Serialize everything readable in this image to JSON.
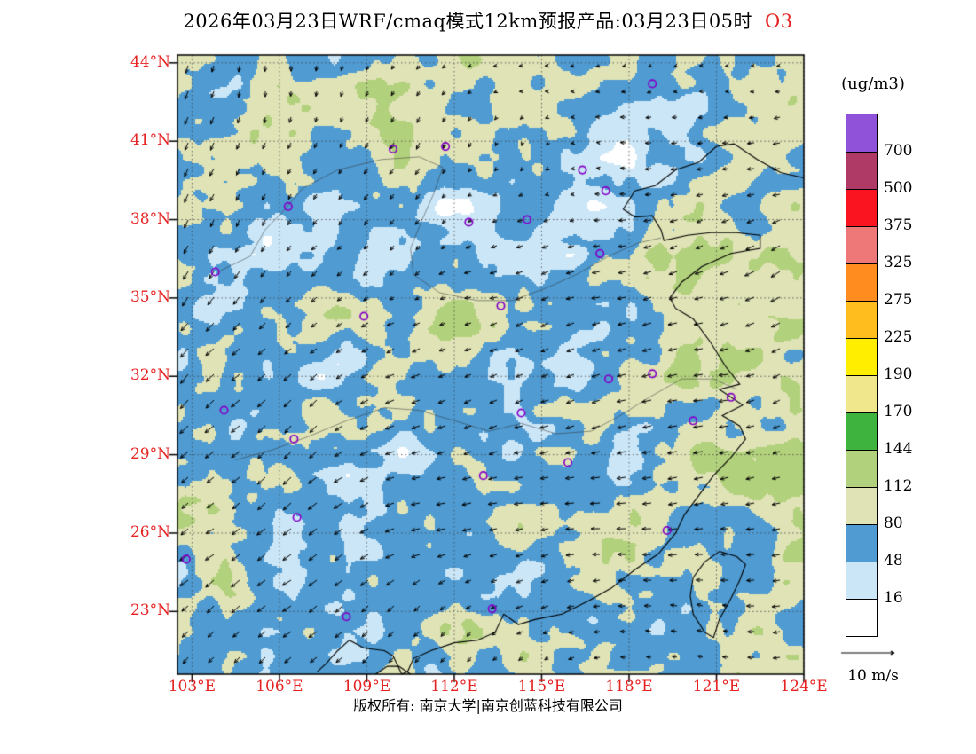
{
  "title": {
    "main": "2026年03月23日WRF/cmaq模式12km预报产品:03月23日05时",
    "species": "O3"
  },
  "colors": {
    "axis_label_red": "#e62222",
    "title_species_red": "#e62222",
    "station_marker_purple": "#8400c8",
    "coastline_black": "#000000"
  },
  "colorbar": {
    "unit_label": "(ug/m3)"
  },
  "wind_legend": {
    "label": "10 m/s"
  },
  "footer": {
    "copyright": "版权所有: 南京大学|南京创蓝科技有限公司"
  },
  "stations": {
    "points": [
      [
        102.8,
        25.0
      ],
      [
        104.1,
        30.7
      ],
      [
        106.5,
        29.6
      ],
      [
        106.6,
        26.6
      ],
      [
        108.3,
        22.8
      ],
      [
        108.9,
        34.3
      ],
      [
        106.3,
        38.5
      ],
      [
        103.8,
        36.0
      ],
      [
        111.7,
        40.8
      ],
      [
        109.9,
        40.7
      ],
      [
        112.5,
        37.9
      ],
      [
        114.5,
        38.0
      ],
      [
        116.4,
        39.9
      ],
      [
        117.2,
        39.1
      ],
      [
        113.6,
        34.7
      ],
      [
        117.0,
        36.7
      ],
      [
        114.3,
        30.6
      ],
      [
        113.0,
        28.2
      ],
      [
        115.9,
        28.7
      ],
      [
        117.3,
        31.9
      ],
      [
        118.8,
        32.1
      ],
      [
        121.5,
        31.2
      ],
      [
        120.2,
        30.3
      ],
      [
        119.3,
        26.1
      ],
      [
        113.3,
        23.1
      ],
      [
        118.8,
        43.2
      ]
    ]
  },
  "chart_data": {
    "type": "heatmap",
    "title": "2026年03月23日WRF/cmaq模式12km预报产品:03月23日05时 O3",
    "variable": "O3",
    "units": "ug/m3",
    "x_tick_labels": [
      "103°E",
      "106°E",
      "109°E",
      "112°E",
      "115°E",
      "118°E",
      "121°E",
      "124°E"
    ],
    "x_tick_values": [
      103,
      106,
      109,
      112,
      115,
      118,
      121,
      124
    ],
    "y_tick_labels": [
      "23°N",
      "26°N",
      "29°N",
      "32°N",
      "35°N",
      "38°N",
      "41°N",
      "44°N"
    ],
    "y_tick_values": [
      23,
      26,
      29,
      32,
      35,
      38,
      41,
      44
    ],
    "x_range": [
      102.5,
      124.0
    ],
    "y_range": [
      20.6,
      44.3
    ],
    "levels": [
      16,
      48,
      80,
      112,
      144,
      170,
      190,
      225,
      275,
      325,
      375,
      500,
      700
    ],
    "level_colors": [
      "#ffffff",
      "#cbe6f7",
      "#4f9bd2",
      "#dfe3b6",
      "#b2d17c",
      "#3eb43e",
      "#f0e68c",
      "#ffee00",
      "#ffbe1e",
      "#ff8c1e",
      "#ee7777",
      "#fa1420",
      "#b03a66",
      "#8f52d8"
    ],
    "legend_position": "right",
    "grid": "dotted-graticule",
    "overlays": [
      "wind-vectors",
      "coastlines",
      "station-markers"
    ],
    "wind_reference": "10 m/s"
  }
}
